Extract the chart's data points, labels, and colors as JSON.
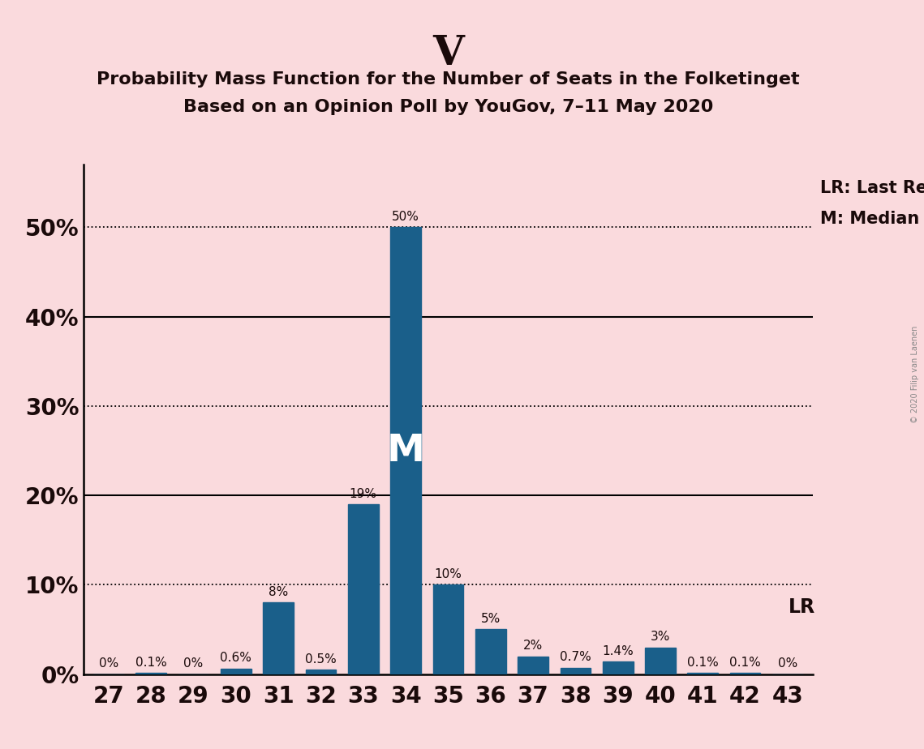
{
  "title_main": "V",
  "title_line1": "Probability Mass Function for the Number of Seats in the Folketinget",
  "title_line2": "Based on an Opinion Poll by YouGov, 7–11 May 2020",
  "categories": [
    27,
    28,
    29,
    30,
    31,
    32,
    33,
    34,
    35,
    36,
    37,
    38,
    39,
    40,
    41,
    42,
    43
  ],
  "values": [
    0.0,
    0.1,
    0.0,
    0.6,
    8.0,
    0.5,
    19.0,
    50.0,
    10.0,
    5.0,
    2.0,
    0.7,
    1.4,
    3.0,
    0.1,
    0.1,
    0.0
  ],
  "bar_color": "#1a5f8a",
  "background_color": "#fadadd",
  "label_color": "#1a0a0a",
  "median_bar": 34,
  "median_label": "M",
  "lr_value": 40,
  "lr_label": "LR",
  "lr_legend": "LR: Last Result",
  "m_legend": "M: Median",
  "ytick_positions": [
    0,
    10,
    20,
    30,
    40,
    50
  ],
  "ytick_labels": [
    "0%",
    "10%",
    "20%",
    "30%",
    "40%",
    "50%"
  ],
  "dotted_lines": [
    10,
    30,
    50
  ],
  "solid_lines": [
    20,
    40
  ],
  "ylim": [
    0,
    57
  ],
  "watermark": "© 2020 Filip van Laenen",
  "title_fontsize": 36,
  "subtitle_fontsize": 16,
  "bar_label_fontsize": 11,
  "axis_tick_fontsize": 20,
  "legend_fontsize": 15
}
